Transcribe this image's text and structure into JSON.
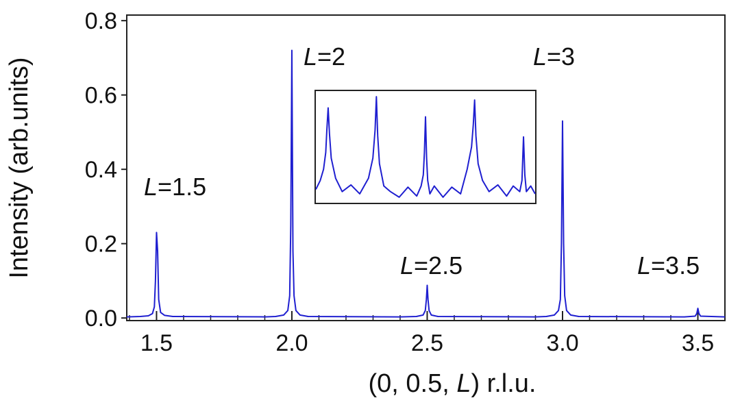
{
  "chart_data": [
    {
      "type": "line",
      "y_label": "Intensity (arb.units)",
      "x_label": [
        "(0, 0.5, ",
        "L",
        ") r.l.u."
      ],
      "xlim": [
        1.39,
        3.6
      ],
      "ylim": [
        -0.007,
        0.815
      ],
      "xticks": [
        1.5,
        {
          "value": 2,
          "label": "2.0"
        },
        2.5,
        {
          "value": 3,
          "label": "3.0"
        },
        3.5
      ],
      "xticks_minor": [
        1.4,
        1.6,
        1.7,
        1.8,
        1.9,
        2.1,
        2.2,
        2.3,
        2.4,
        2.6,
        2.7,
        2.8,
        2.9,
        3.1,
        3.2,
        3.3,
        3.4,
        3.6
      ],
      "yticks": [
        {
          "value": 0,
          "label": "0.0"
        },
        0.2,
        0.4,
        0.6,
        0.8
      ],
      "annotations": [
        {
          "italic": "L",
          "text": "=1.5"
        },
        {
          "italic": "L",
          "text": "=2"
        },
        {
          "italic": "L",
          "text": "=2.5"
        },
        {
          "italic": "L",
          "text": "=3"
        },
        {
          "italic": "L",
          "text": "=3.5"
        }
      ],
      "series": [
        {
          "color": "#1f1fd0",
          "x": [
            1.39,
            1.44,
            1.47,
            1.485,
            1.492,
            1.496,
            1.5,
            1.504,
            1.508,
            1.515,
            1.53,
            1.56,
            1.9,
            1.94,
            1.97,
            1.985,
            1.992,
            1.996,
            2.0,
            2.004,
            2.008,
            2.015,
            2.03,
            2.06,
            2.4,
            2.46,
            2.485,
            2.493,
            2.497,
            2.5,
            2.503,
            2.507,
            2.515,
            2.54,
            2.9,
            2.94,
            2.97,
            2.985,
            2.992,
            2.996,
            3.0,
            3.004,
            3.008,
            3.015,
            3.03,
            3.06,
            3.45,
            3.49,
            3.496,
            3.5,
            3.504,
            3.51,
            3.6
          ],
          "values": [
            0.003,
            0.004,
            0.006,
            0.012,
            0.03,
            0.1,
            0.23,
            0.18,
            0.05,
            0.015,
            0.007,
            0.004,
            0.003,
            0.004,
            0.008,
            0.02,
            0.06,
            0.25,
            0.72,
            0.18,
            0.06,
            0.02,
            0.008,
            0.004,
            0.003,
            0.004,
            0.008,
            0.02,
            0.05,
            0.088,
            0.05,
            0.02,
            0.008,
            0.004,
            0.003,
            0.004,
            0.008,
            0.02,
            0.05,
            0.2,
            0.53,
            0.2,
            0.06,
            0.02,
            0.008,
            0.004,
            0.003,
            0.005,
            0.012,
            0.026,
            0.012,
            0.005,
            0.003
          ]
        }
      ]
    },
    {
      "type": "line",
      "xlim": [
        0,
        1
      ],
      "ylim": [
        0,
        1
      ],
      "series": [
        {
          "color": "#1f1fd0",
          "x": [
            0,
            0.02,
            0.035,
            0.045,
            0.05,
            0.056,
            0.062,
            0.07,
            0.09,
            0.12,
            0.16,
            0.2,
            0.24,
            0.26,
            0.27,
            0.276,
            0.282,
            0.29,
            0.31,
            0.34,
            0.38,
            0.42,
            0.46,
            0.48,
            0.49,
            0.495,
            0.5,
            0.505,
            0.51,
            0.52,
            0.54,
            0.58,
            0.62,
            0.66,
            0.69,
            0.71,
            0.718,
            0.724,
            0.73,
            0.74,
            0.76,
            0.79,
            0.83,
            0.87,
            0.9,
            0.93,
            0.94,
            0.947,
            0.953,
            0.96,
            0.98,
            1
          ],
          "values": [
            0.12,
            0.2,
            0.3,
            0.45,
            0.65,
            0.85,
            0.62,
            0.4,
            0.22,
            0.1,
            0.16,
            0.08,
            0.22,
            0.4,
            0.65,
            0.95,
            0.6,
            0.35,
            0.15,
            0.1,
            0.05,
            0.14,
            0.06,
            0.15,
            0.25,
            0.45,
            0.77,
            0.4,
            0.2,
            0.08,
            0.15,
            0.05,
            0.14,
            0.08,
            0.3,
            0.5,
            0.7,
            0.92,
            0.6,
            0.35,
            0.2,
            0.1,
            0.16,
            0.06,
            0.15,
            0.1,
            0.2,
            0.59,
            0.25,
            0.1,
            0.15,
            0.08
          ]
        }
      ]
    }
  ]
}
